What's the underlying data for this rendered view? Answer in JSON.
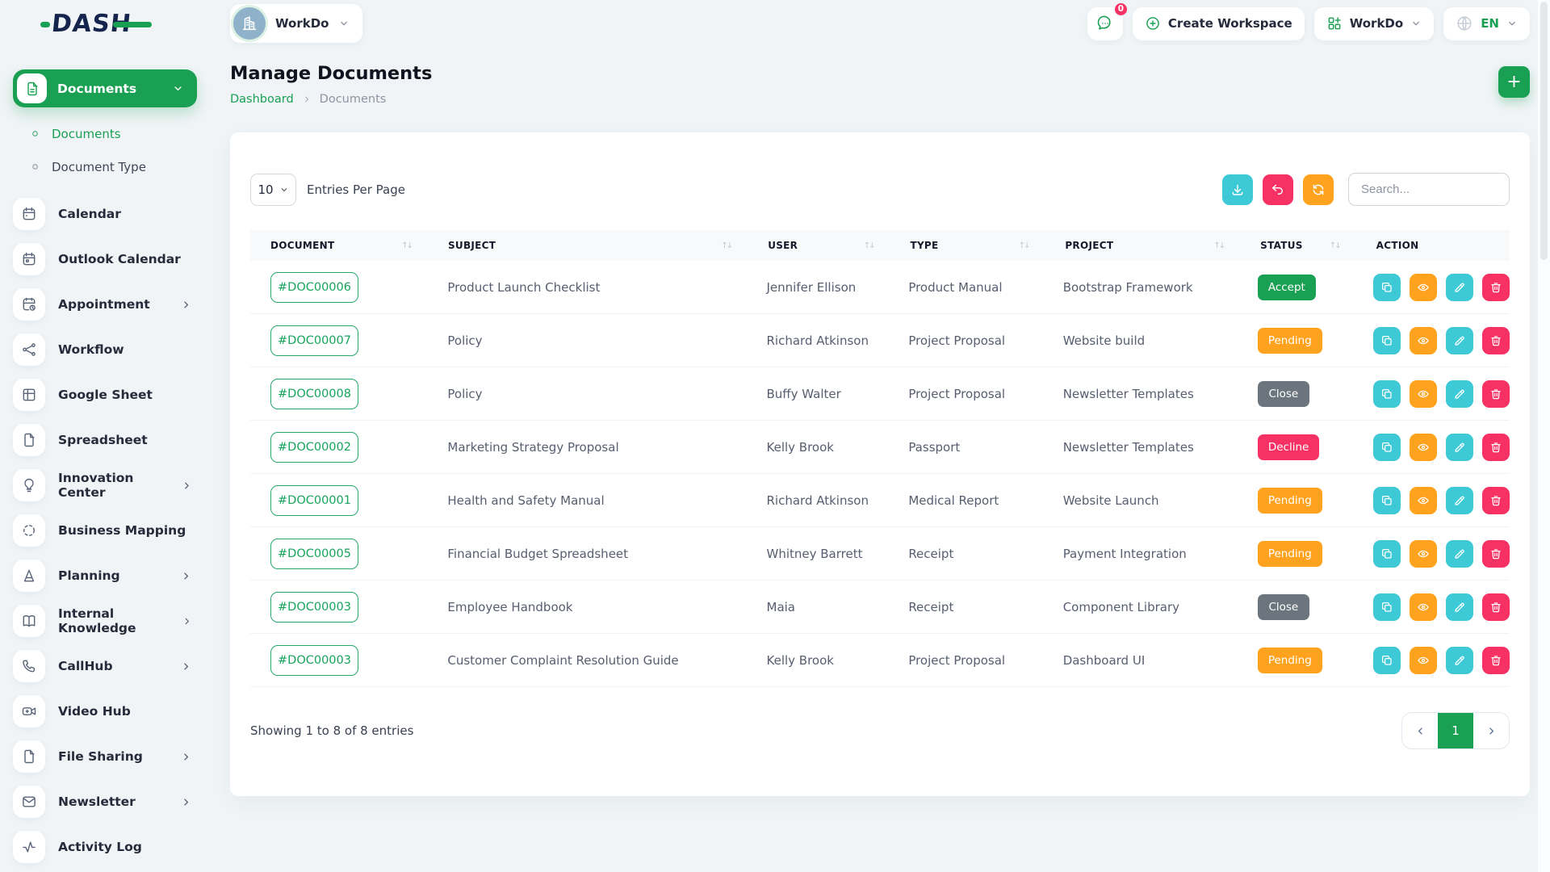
{
  "brand": {
    "name": "DASH"
  },
  "topbar": {
    "workspace": {
      "label": "WorkDo"
    },
    "messages": {
      "badge": "0"
    },
    "create_workspace": {
      "label": "Create Workspace"
    },
    "workdo_menu": {
      "label": "WorkDo"
    },
    "language": {
      "label": "EN"
    }
  },
  "sidebar": {
    "group": {
      "label": "Documents",
      "children": [
        {
          "label": "Documents",
          "active": true
        },
        {
          "label": "Document Type",
          "active": false
        }
      ]
    },
    "items": [
      {
        "label": "Calendar",
        "icon": "calendar",
        "has_children": false
      },
      {
        "label": "Outlook Calendar",
        "icon": "calendar-event",
        "has_children": false
      },
      {
        "label": "Appointment",
        "icon": "calendar-clock",
        "has_children": true
      },
      {
        "label": "Workflow",
        "icon": "workflow",
        "has_children": false
      },
      {
        "label": "Google Sheet",
        "icon": "table-grid",
        "has_children": false
      },
      {
        "label": "Spreadsheet",
        "icon": "file",
        "has_children": false
      },
      {
        "label": "Innovation Center",
        "icon": "bulb",
        "has_children": true
      },
      {
        "label": "Business Mapping",
        "icon": "dashed-circle",
        "has_children": false
      },
      {
        "label": "Planning",
        "icon": "pyramid",
        "has_children": true
      },
      {
        "label": "Internal Knowledge",
        "icon": "book",
        "has_children": true
      },
      {
        "label": "CallHub",
        "icon": "phone",
        "has_children": true
      },
      {
        "label": "Video Hub",
        "icon": "video",
        "has_children": false
      },
      {
        "label": "File Sharing",
        "icon": "file",
        "has_children": true
      },
      {
        "label": "Newsletter",
        "icon": "mail",
        "has_children": true
      },
      {
        "label": "Activity Log",
        "icon": "activity",
        "has_children": false
      }
    ]
  },
  "page": {
    "title": "Manage Documents",
    "breadcrumb": {
      "home": "Dashboard",
      "current": "Documents"
    },
    "add_label": "+"
  },
  "toolbar": {
    "entries_value": "10",
    "entries_label": "Entries Per Page",
    "search_placeholder": "Search...",
    "buttons": [
      {
        "icon": "download",
        "color": "cyan"
      },
      {
        "icon": "undo",
        "color": "pink"
      },
      {
        "icon": "refresh",
        "color": "orange"
      }
    ]
  },
  "table": {
    "columns": [
      {
        "label": "DOCUMENT",
        "sortable": true
      },
      {
        "label": "SUBJECT",
        "sortable": true
      },
      {
        "label": "USER",
        "sortable": true
      },
      {
        "label": "TYPE",
        "sortable": true
      },
      {
        "label": "PROJECT",
        "sortable": true
      },
      {
        "label": "STATUS",
        "sortable": true
      },
      {
        "label": "ACTION",
        "sortable": false
      }
    ],
    "row_actions": [
      {
        "icon": "copy",
        "color": "cyan"
      },
      {
        "icon": "eye",
        "color": "orange"
      },
      {
        "icon": "edit",
        "color": "cyan"
      },
      {
        "icon": "delete",
        "color": "pink"
      }
    ],
    "rows": [
      {
        "id": "#DOC00006",
        "subject": "Product Launch Checklist",
        "user": "Jennifer Ellison",
        "type": "Product Manual",
        "project": "Bootstrap Framework",
        "status": "Accept",
        "status_color": "green"
      },
      {
        "id": "#DOC00007",
        "subject": "Policy",
        "user": "Richard Atkinson",
        "type": "Project Proposal",
        "project": "Website build",
        "status": "Pending",
        "status_color": "orange"
      },
      {
        "id": "#DOC00008",
        "subject": "Policy",
        "user": "Buffy Walter",
        "type": "Project Proposal",
        "project": "Newsletter Templates",
        "status": "Close",
        "status_color": "gray"
      },
      {
        "id": "#DOC00002",
        "subject": "Marketing Strategy Proposal",
        "user": "Kelly Brook",
        "type": "Passport",
        "project": "Newsletter Templates",
        "status": "Decline",
        "status_color": "pink"
      },
      {
        "id": "#DOC00001",
        "subject": "Health and Safety Manual",
        "user": "Richard Atkinson",
        "type": "Medical Report",
        "project": "Website Launch",
        "status": "Pending",
        "status_color": "orange"
      },
      {
        "id": "#DOC00005",
        "subject": "Financial Budget Spreadsheet",
        "user": "Whitney Barrett",
        "type": "Receipt",
        "project": "Payment Integration",
        "status": "Pending",
        "status_color": "orange"
      },
      {
        "id": "#DOC00003",
        "subject": "Employee Handbook",
        "user": "Maia",
        "type": "Receipt",
        "project": "Component Library",
        "status": "Close",
        "status_color": "gray"
      },
      {
        "id": "#DOC00003",
        "subject": "Customer Complaint Resolution Guide",
        "user": "Kelly Brook",
        "type": "Project Proposal",
        "project": "Dashboard UI",
        "status": "Pending",
        "status_color": "orange"
      }
    ]
  },
  "footer": {
    "showing": "Showing 1 to 8 of 8 entries",
    "page": "1"
  },
  "colors": {
    "green": "#1aa053",
    "orange": "#ffa21d",
    "pink": "#f73164",
    "cyan": "#3ec9d6",
    "gray": "#6c757d"
  }
}
